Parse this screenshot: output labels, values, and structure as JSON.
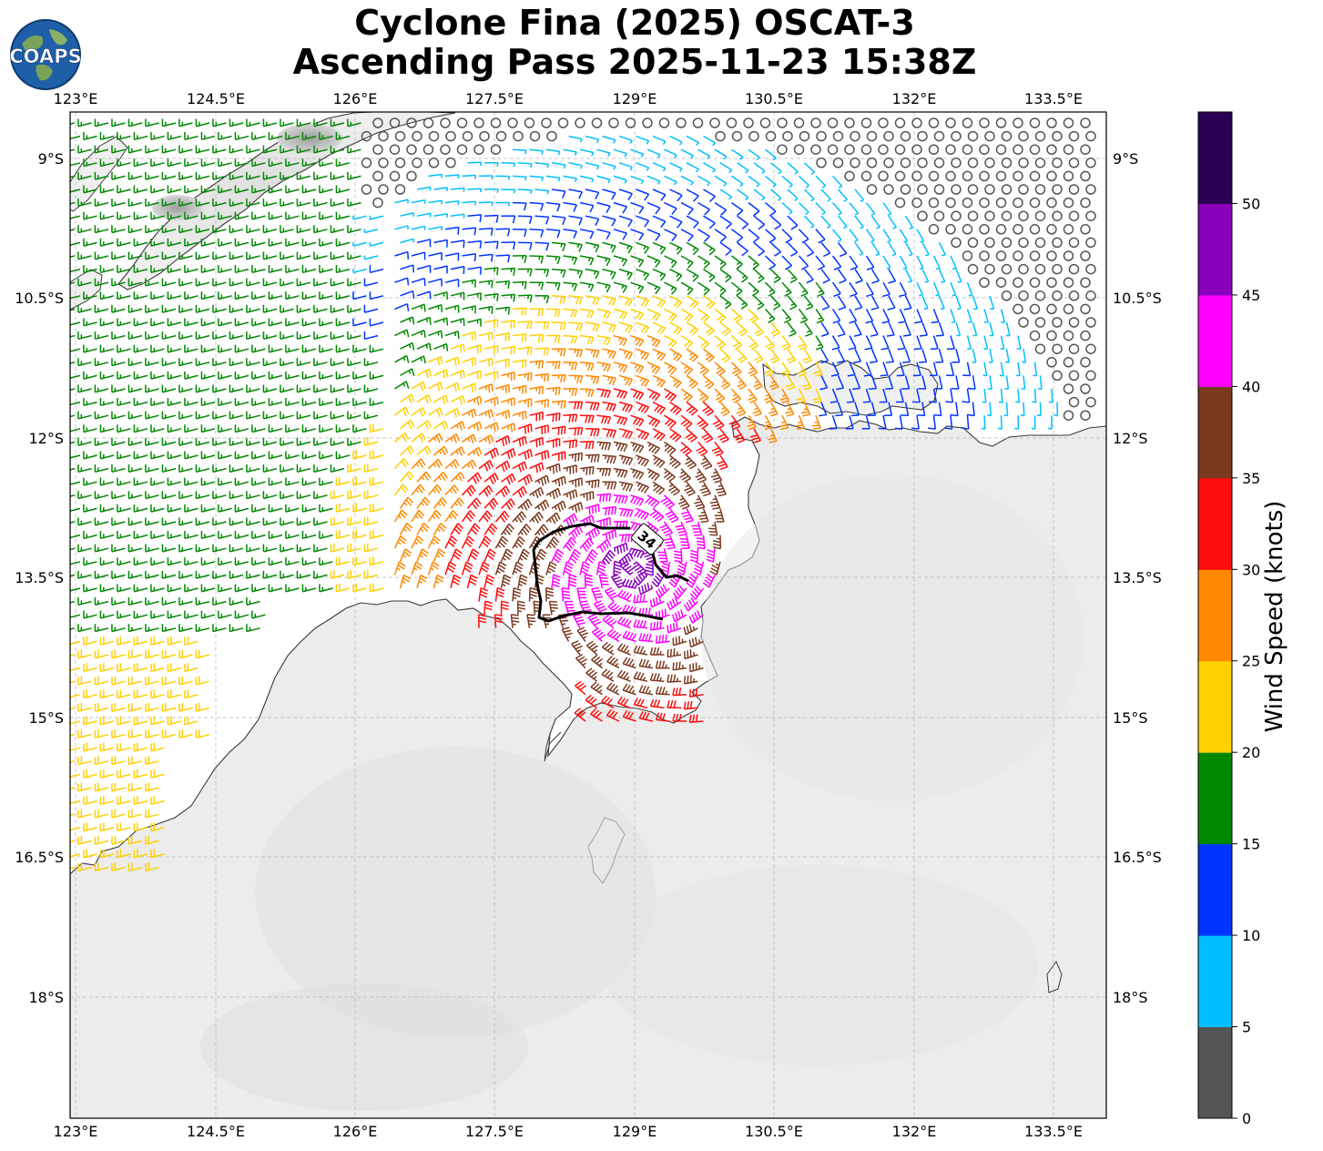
{
  "header": {
    "title_line1": "Cyclone Fina (2025) OSCAT-3",
    "title_line2": "Ascending Pass 2025-11-23 15:38Z",
    "logo_text": "COAPS"
  },
  "map": {
    "lon_labels": [
      "123°E",
      "124.5°E",
      "126°E",
      "127.5°E",
      "129°E",
      "130.5°E",
      "132°E",
      "133.5°E"
    ],
    "lat_labels": [
      "9°S",
      "10.5°S",
      "12°S",
      "13.5°S",
      "15°S",
      "16.5°S",
      "18°S"
    ],
    "contour_label": "34",
    "gridlines": true
  },
  "colorbar": {
    "label": "Wind Speed (knots)",
    "ticks": [
      "0",
      "5",
      "10",
      "15",
      "20",
      "25",
      "30",
      "35",
      "40",
      "45",
      "50"
    ],
    "colors": [
      "#555555",
      "#00bfff",
      "#0033ff",
      "#008800",
      "#ffd000",
      "#ff8800",
      "#ff0d0d",
      "#7b3a20",
      "#ff00ff",
      "#8800bb",
      "#2a0055"
    ]
  },
  "chart_data": {
    "type": "wind_barb_map",
    "title": "Cyclone Fina (2025) OSCAT-3 Ascending Pass 2025-11-23 15:38Z",
    "x_axis": "longitude",
    "y_axis": "latitude",
    "lon_range": [
      122.9,
      134.0
    ],
    "lat_range": [
      -8.5,
      -19.3
    ],
    "center_lon": 128.6,
    "center_lat": -13.4,
    "max_wind_knots": 45,
    "contour_34kt": true,
    "colorbar_range_knots": [
      0,
      55
    ],
    "colorbar_step_knots": 5
  }
}
